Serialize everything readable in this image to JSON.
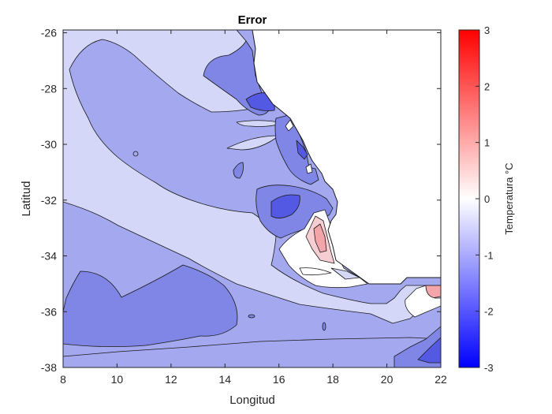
{
  "chart_data": {
    "type": "heatmap",
    "title": "Error",
    "xlabel": "Longitud",
    "ylabel": "Latitud",
    "xlim": [
      8,
      22
    ],
    "ylim": [
      -38,
      -25.9
    ],
    "xticks": [
      8,
      10,
      12,
      14,
      16,
      18,
      20,
      22
    ],
    "yticks": [
      -38,
      -36,
      -34,
      -32,
      -30,
      -28,
      -26
    ],
    "colorbar": {
      "label": "Temperatura °C",
      "range": [
        -3,
        3
      ],
      "ticks": [
        3,
        2,
        1,
        0,
        -1,
        -2,
        -3
      ],
      "colormap": [
        "#0000ff",
        "#ffffff",
        "#ff0000"
      ]
    },
    "contour_levels": [
      -2.5,
      -2,
      -1.5,
      -1,
      -0.5,
      0,
      0.5,
      1
    ],
    "land_color": "#ffffff",
    "regions": [
      {
        "description": "broad offshore field",
        "value": -1.2
      },
      {
        "description": "northwestern lighter band",
        "value": -0.7
      },
      {
        "description": "diagonal band from 9E -31S to 20E -36S",
        "value": -0.6
      },
      {
        "description": "southwestern darker region",
        "value": -1.6
      },
      {
        "description": "southern strip",
        "value": -1.2
      },
      {
        "description": "coastal cold patch near 16E -29S",
        "value": -1.7
      },
      {
        "description": "coastal cold patch near 16.5E -32.5S",
        "value": -1.5
      },
      {
        "description": "near-zero area off Cape Columbine",
        "value": 0.0
      },
      {
        "description": "warm coastal patch near 17.5E -33.5S",
        "value": 0.5
      },
      {
        "description": "warm patch near 21.8E -35.5S",
        "value": 0.6
      },
      {
        "description": "cold corner near 21.5E -37.5S",
        "value": -2.0
      }
    ]
  }
}
